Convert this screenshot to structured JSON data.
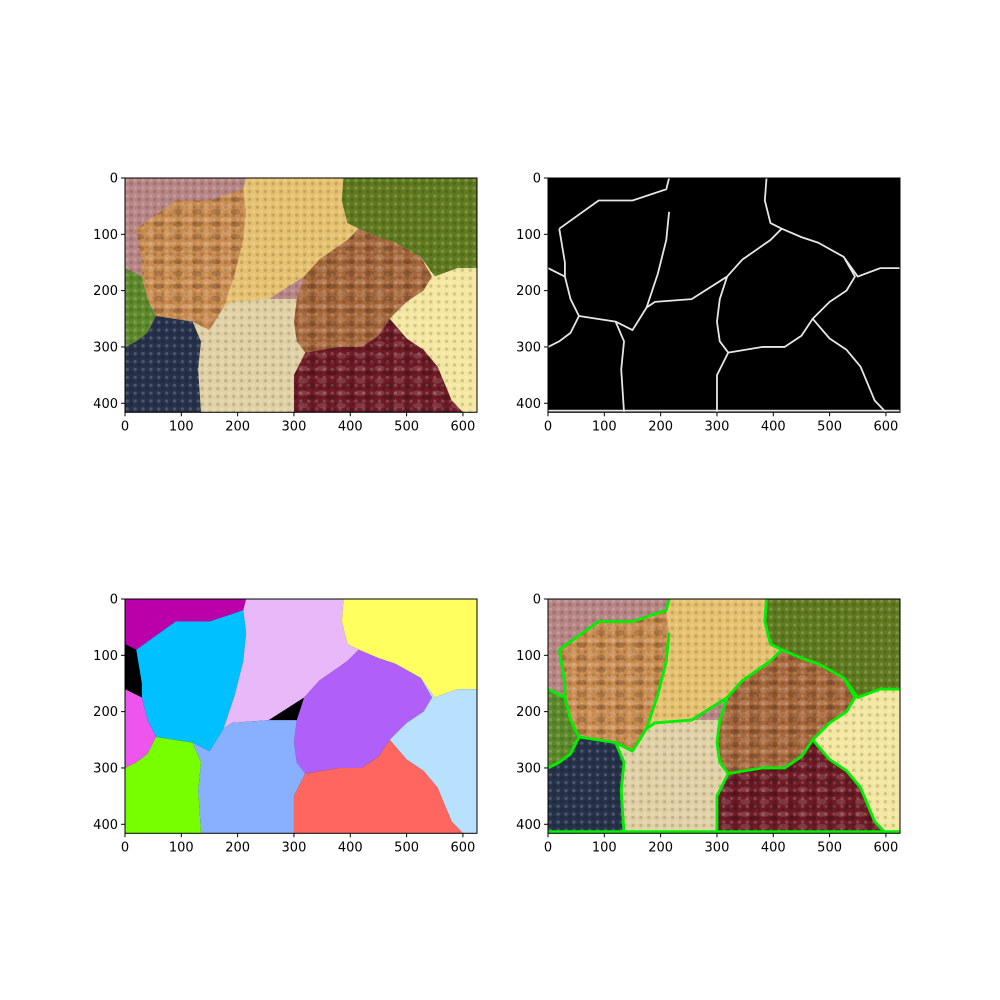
{
  "figure": {
    "layout": "2x2 grid",
    "axes_frame_color": "#000000",
    "panels": [
      {
        "id": "original",
        "content": "original photo: mixed beans and nuts (cashews, split peas, mung beans, almonds, corn, soybeans, black beans, kidney beans)",
        "x_ticks": [
          "0",
          "100",
          "200",
          "300",
          "400",
          "500",
          "600"
        ],
        "y_ticks": [
          "0",
          "100",
          "200",
          "300",
          "400"
        ]
      },
      {
        "id": "edges",
        "content": "white region boundaries on black background",
        "x_ticks": [
          "0",
          "100",
          "200",
          "300",
          "400",
          "500",
          "600"
        ],
        "y_ticks": [
          "0",
          "100",
          "200",
          "300",
          "400"
        ]
      },
      {
        "id": "labels",
        "content": "color-coded segmentation regions",
        "x_ticks": [
          "0",
          "100",
          "200",
          "300",
          "400",
          "500",
          "600"
        ],
        "y_ticks": [
          "0",
          "100",
          "200",
          "300",
          "400"
        ],
        "region_colors": {
          "magenta": "#bb00aa",
          "cyan": "#00c0ff",
          "lavender": "#e8b8f8",
          "yellow": "#ffff60",
          "pink": "#ee55ee",
          "purple": "#b060f8",
          "light_blue": "#b8e0ff",
          "lime": "#77ff00",
          "periwinkle": "#88b0ff",
          "salmon": "#ff6660",
          "gap": "#000000"
        }
      },
      {
        "id": "overlay",
        "content": "original photo with green region boundaries overlaid",
        "x_ticks": [
          "0",
          "100",
          "200",
          "300",
          "400",
          "500",
          "600"
        ],
        "y_ticks": [
          "0",
          "100",
          "200",
          "300",
          "400"
        ],
        "boundary_color": "#00ee00"
      }
    ]
  },
  "photo_colors": {
    "cashew": "#c98a4e",
    "split_pea": "#e6c270",
    "mung": "#5f7a1e",
    "almond": "#a6673a",
    "corn": "#f3e7a1",
    "soy": "#e1d2a6",
    "black_bean": "#26324a",
    "kidney": "#6e1b26",
    "red_bean": "#b78585",
    "green_pea": "#5c8a2a"
  }
}
